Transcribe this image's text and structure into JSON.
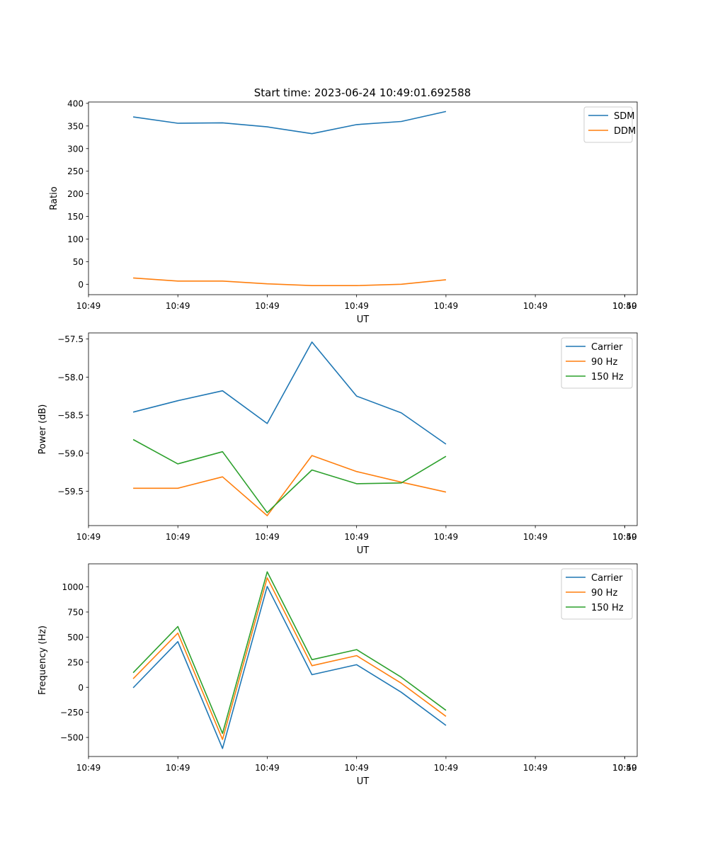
{
  "figure": {
    "title": "Start time: 2023-06-24 10:49:01.692588"
  },
  "chart_data": [
    {
      "type": "line",
      "xlabel": "UT",
      "ylabel": "Ratio",
      "x_tick_labels": [
        "10:49",
        "10:49",
        "10:49",
        "10:49",
        "10:49",
        "10:49",
        "10:49"
      ],
      "x_last_tick_label": "10:50",
      "xlim": [
        0,
        6.14
      ],
      "ylim": [
        -23,
        403
      ],
      "y_ticks": [
        0,
        50,
        100,
        150,
        200,
        250,
        300,
        350,
        400
      ],
      "y_tick_labels": [
        "0",
        "50",
        "100",
        "150",
        "200",
        "250",
        "300",
        "350",
        "400"
      ],
      "legend_position": "top-right",
      "x": [
        0.5,
        1.0,
        1.5,
        2.0,
        2.5,
        3.0,
        3.5,
        4.0
      ],
      "series": [
        {
          "name": "SDM",
          "color": "#1f77b4",
          "values": [
            370,
            356,
            357,
            348,
            333,
            353,
            360,
            382
          ]
        },
        {
          "name": "DDM",
          "color": "#ff7f0e",
          "values": [
            14,
            7,
            7,
            1,
            -3,
            -3,
            0,
            10
          ]
        }
      ]
    },
    {
      "type": "line",
      "xlabel": "UT",
      "ylabel": "Power (dB)",
      "x_tick_labels": [
        "10:49",
        "10:49",
        "10:49",
        "10:49",
        "10:49",
        "10:49",
        "10:49"
      ],
      "x_last_tick_label": "10:50",
      "xlim": [
        0,
        6.14
      ],
      "ylim": [
        -59.95,
        -57.42
      ],
      "y_ticks": [
        -59.5,
        -59.0,
        -58.5,
        -58.0,
        -57.5
      ],
      "y_tick_labels": [
        "−59.5",
        "−59.0",
        "−58.5",
        "−58.0",
        "−57.5"
      ],
      "legend_position": "top-right",
      "x": [
        0.5,
        1.0,
        1.5,
        2.0,
        2.5,
        3.0,
        3.5,
        4.0
      ],
      "series": [
        {
          "name": "Carrier",
          "color": "#1f77b4",
          "values": [
            -58.46,
            -58.31,
            -58.18,
            -58.61,
            -57.54,
            -58.25,
            -58.47,
            -58.88
          ]
        },
        {
          "name": "90 Hz",
          "color": "#ff7f0e",
          "values": [
            -59.46,
            -59.46,
            -59.31,
            -59.82,
            -59.03,
            -59.24,
            -59.38,
            -59.51
          ]
        },
        {
          "name": "150 Hz",
          "color": "#2ca02c",
          "values": [
            -58.82,
            -59.14,
            -58.98,
            -59.78,
            -59.22,
            -59.4,
            -59.39,
            -59.04
          ]
        }
      ]
    },
    {
      "type": "line",
      "xlabel": "UT",
      "ylabel": "Frequency (Hz)",
      "x_tick_labels": [
        "10:49",
        "10:49",
        "10:49",
        "10:49",
        "10:49",
        "10:49",
        "10:49"
      ],
      "x_last_tick_label": "10:50",
      "xlim": [
        0,
        6.14
      ],
      "ylim": [
        -690,
        1230
      ],
      "y_ticks": [
        -500,
        -250,
        0,
        250,
        500,
        750,
        1000
      ],
      "y_tick_labels": [
        "−500",
        "−250",
        "0",
        "250",
        "500",
        "750",
        "1000"
      ],
      "legend_position": "top-right",
      "x": [
        0.5,
        1.0,
        1.5,
        2.0,
        2.5,
        3.0,
        3.5,
        4.0
      ],
      "series": [
        {
          "name": "Carrier",
          "color": "#1f77b4",
          "values": [
            -5,
            455,
            -610,
            1005,
            125,
            225,
            -50,
            -380
          ]
        },
        {
          "name": "90 Hz",
          "color": "#ff7f0e",
          "values": [
            85,
            540,
            -520,
            1090,
            215,
            315,
            40,
            -290
          ]
        },
        {
          "name": "150 Hz",
          "color": "#2ca02c",
          "values": [
            145,
            605,
            -460,
            1150,
            275,
            375,
            100,
            -230
          ]
        }
      ]
    }
  ]
}
